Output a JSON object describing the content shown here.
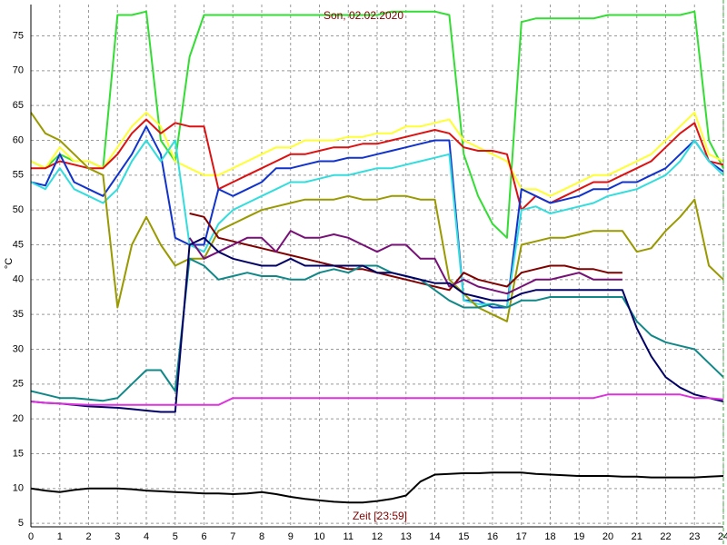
{
  "chart_data": {
    "type": "line",
    "title": "Son, 02.02.2020",
    "y_label": "°C",
    "x_label": "Zeit [23:59]",
    "xlim": [
      0,
      24
    ],
    "ylim": [
      4.5,
      79.5
    ],
    "xticks": [
      0,
      1,
      2,
      3,
      4,
      5,
      6,
      7,
      8,
      9,
      10,
      11,
      12,
      13,
      14,
      15,
      16,
      17,
      18,
      19,
      20,
      21,
      22,
      23,
      24
    ],
    "yticks": [
      5,
      10,
      15,
      20,
      25,
      30,
      35,
      40,
      45,
      50,
      55,
      60,
      65,
      70,
      75
    ],
    "grid": true,
    "x": [
      0,
      0.5,
      1,
      1.5,
      2,
      2.5,
      3,
      3.5,
      4,
      4.5,
      5,
      5.5,
      6,
      6.5,
      7,
      7.5,
      8,
      8.5,
      9,
      9.5,
      10,
      10.5,
      11,
      11.5,
      12,
      12.5,
      13,
      13.5,
      14,
      14.5,
      15,
      15.5,
      16,
      16.5,
      17,
      17.5,
      18,
      18.5,
      19,
      19.5,
      20,
      20.5,
      21,
      21.5,
      22,
      22.5,
      23,
      23.5,
      24
    ],
    "series": [
      {
        "color": "#33dd33",
        "values": [
          57,
          56,
          58,
          57,
          57,
          56,
          78,
          78,
          78.5,
          60,
          57,
          72,
          78,
          78,
          78,
          78,
          78,
          78,
          78,
          78,
          78,
          78,
          78,
          78,
          78,
          78.5,
          78.5,
          78.5,
          78.5,
          78,
          58,
          52,
          48,
          46,
          77,
          77.5,
          77.5,
          77.5,
          77.5,
          77.5,
          78,
          78,
          78,
          78,
          78,
          78,
          78.5,
          60,
          56
        ]
      },
      {
        "color": "#ffff33",
        "values": [
          57,
          56,
          59,
          57,
          57,
          56,
          59,
          62,
          64,
          62,
          57,
          56,
          55,
          55,
          56,
          57,
          58,
          59,
          59,
          60,
          60,
          60,
          60.5,
          60.5,
          61,
          61,
          62,
          62,
          62.5,
          63,
          60,
          59,
          58,
          57,
          53,
          53,
          52,
          53,
          54,
          55,
          55,
          56,
          57,
          58,
          60,
          62,
          64,
          58,
          57
        ]
      },
      {
        "color": "#dd1111",
        "values": [
          56,
          56,
          57,
          56.5,
          56,
          56,
          58,
          61,
          63,
          61,
          62.5,
          62,
          62,
          53,
          54,
          55,
          56,
          57,
          58,
          58,
          58.5,
          59,
          59,
          59.5,
          59.5,
          60,
          60.5,
          61,
          61.5,
          61,
          59,
          58.5,
          58.5,
          58,
          50,
          52,
          51,
          52,
          53,
          54,
          54,
          55,
          56,
          57,
          59,
          61,
          62.5,
          57,
          56.5
        ]
      },
      {
        "color": "#1133cc",
        "values": [
          54,
          53.5,
          58,
          54,
          53,
          52,
          55,
          58,
          62,
          58,
          46,
          45,
          45,
          53,
          52,
          53,
          54,
          56,
          56,
          56.5,
          57,
          57,
          57.5,
          57.5,
          58,
          58.5,
          59,
          59.5,
          60,
          60,
          37,
          37,
          36,
          36,
          53,
          52,
          51,
          51.5,
          52,
          53,
          53,
          54,
          54,
          55,
          56,
          58,
          60,
          57,
          55.5
        ]
      },
      {
        "color": "#33dddd",
        "values": [
          54,
          53,
          56,
          53,
          52,
          51,
          53,
          57,
          60,
          57,
          60,
          45,
          44,
          48,
          50,
          51,
          52,
          53,
          54,
          54,
          54.5,
          55,
          55,
          55.5,
          56,
          56,
          56.5,
          57,
          57.5,
          58,
          37,
          36.5,
          36.5,
          36,
          50,
          50.5,
          49.5,
          50,
          50.5,
          51,
          52,
          52.5,
          53,
          54,
          55,
          57,
          60,
          57,
          55
        ]
      },
      {
        "color": "#999900",
        "values": [
          64,
          61,
          60,
          58,
          56,
          55,
          36,
          45,
          49,
          45,
          42,
          43,
          43,
          47,
          48,
          49,
          50,
          50.5,
          51,
          51.5,
          51.5,
          51.5,
          52,
          51.5,
          51.5,
          52,
          52,
          51.5,
          51.5,
          40,
          38,
          36,
          35,
          34,
          45,
          45.5,
          46,
          46,
          46.5,
          47,
          47,
          47,
          44,
          44.5,
          47,
          49,
          51.5,
          42,
          40
        ]
      },
      {
        "color": "#800000",
        "values": [
          null,
          null,
          null,
          null,
          null,
          null,
          null,
          null,
          null,
          null,
          null,
          49.5,
          49,
          46,
          45.5,
          45,
          44.5,
          44,
          43.5,
          43,
          42.5,
          42,
          41.5,
          41.5,
          41,
          40.5,
          40,
          39.5,
          39,
          38.5,
          41,
          40,
          39.5,
          39,
          41,
          41.5,
          42,
          42,
          41.5,
          41.5,
          41,
          41,
          null,
          null,
          null,
          null,
          null,
          null,
          null
        ]
      },
      {
        "color": "#771177",
        "values": [
          null,
          null,
          null,
          null,
          null,
          null,
          null,
          null,
          null,
          null,
          null,
          46,
          43,
          44,
          45,
          46,
          46,
          44,
          47,
          46,
          46,
          46.5,
          46,
          45,
          44,
          45,
          45,
          43,
          43,
          39,
          40,
          39,
          38.5,
          38,
          39,
          40,
          40,
          40.5,
          41,
          40,
          40,
          40,
          null,
          null,
          null,
          null,
          null,
          null,
          null
        ]
      },
      {
        "color": "#118888",
        "values": [
          24,
          23.5,
          23,
          23,
          22.8,
          22.6,
          23,
          25,
          27,
          27,
          24,
          43,
          42,
          40,
          40.5,
          41,
          40.5,
          40.5,
          40,
          40,
          41,
          41.5,
          41,
          42,
          42,
          41,
          40.5,
          40,
          38.5,
          37,
          36,
          36,
          36.5,
          36,
          37,
          37,
          37.5,
          37.5,
          37.5,
          37.5,
          37.5,
          37.5,
          34,
          32,
          31,
          30.5,
          30,
          28,
          26
        ]
      },
      {
        "color": "#000066",
        "values": [
          22.5,
          22.3,
          22.2,
          22,
          21.8,
          21.7,
          21.6,
          21.4,
          21.2,
          21,
          21,
          45,
          46,
          44,
          43,
          42.5,
          42,
          42,
          43,
          42,
          42,
          42,
          42,
          42,
          41,
          41,
          40.5,
          40,
          39.5,
          39.5,
          38,
          37.5,
          37,
          37,
          38,
          38.5,
          38.5,
          38.5,
          38.5,
          38.5,
          38.5,
          38.5,
          33,
          29,
          26,
          24.5,
          23.5,
          23,
          22.5
        ]
      },
      {
        "color": "#dd33dd",
        "values": [
          22.5,
          22.3,
          22.2,
          22.1,
          22,
          22,
          22,
          22,
          22,
          22,
          22,
          22,
          22,
          22,
          23,
          23,
          23,
          23,
          23,
          23,
          23,
          23,
          23,
          23,
          23,
          23,
          23,
          23,
          23,
          23,
          23,
          23,
          23,
          23,
          23,
          23,
          23,
          23,
          23,
          23,
          23.5,
          23.5,
          23.5,
          23.5,
          23.5,
          23.5,
          23,
          23,
          22.8
        ]
      },
      {
        "color": "#000000",
        "values": [
          10,
          9.7,
          9.5,
          9.8,
          10,
          10,
          10,
          9.9,
          9.7,
          9.6,
          9.5,
          9.4,
          9.3,
          9.3,
          9.2,
          9.3,
          9.5,
          9.2,
          8.8,
          8.5,
          8.3,
          8.1,
          8,
          8,
          8.2,
          8.5,
          9,
          11,
          12,
          12.1,
          12.2,
          12.2,
          12.3,
          12.3,
          12.3,
          12.1,
          12,
          11.9,
          11.8,
          11.8,
          11.8,
          11.7,
          11.7,
          11.6,
          11.6,
          11.6,
          11.6,
          11.7,
          11.8
        ]
      }
    ]
  }
}
